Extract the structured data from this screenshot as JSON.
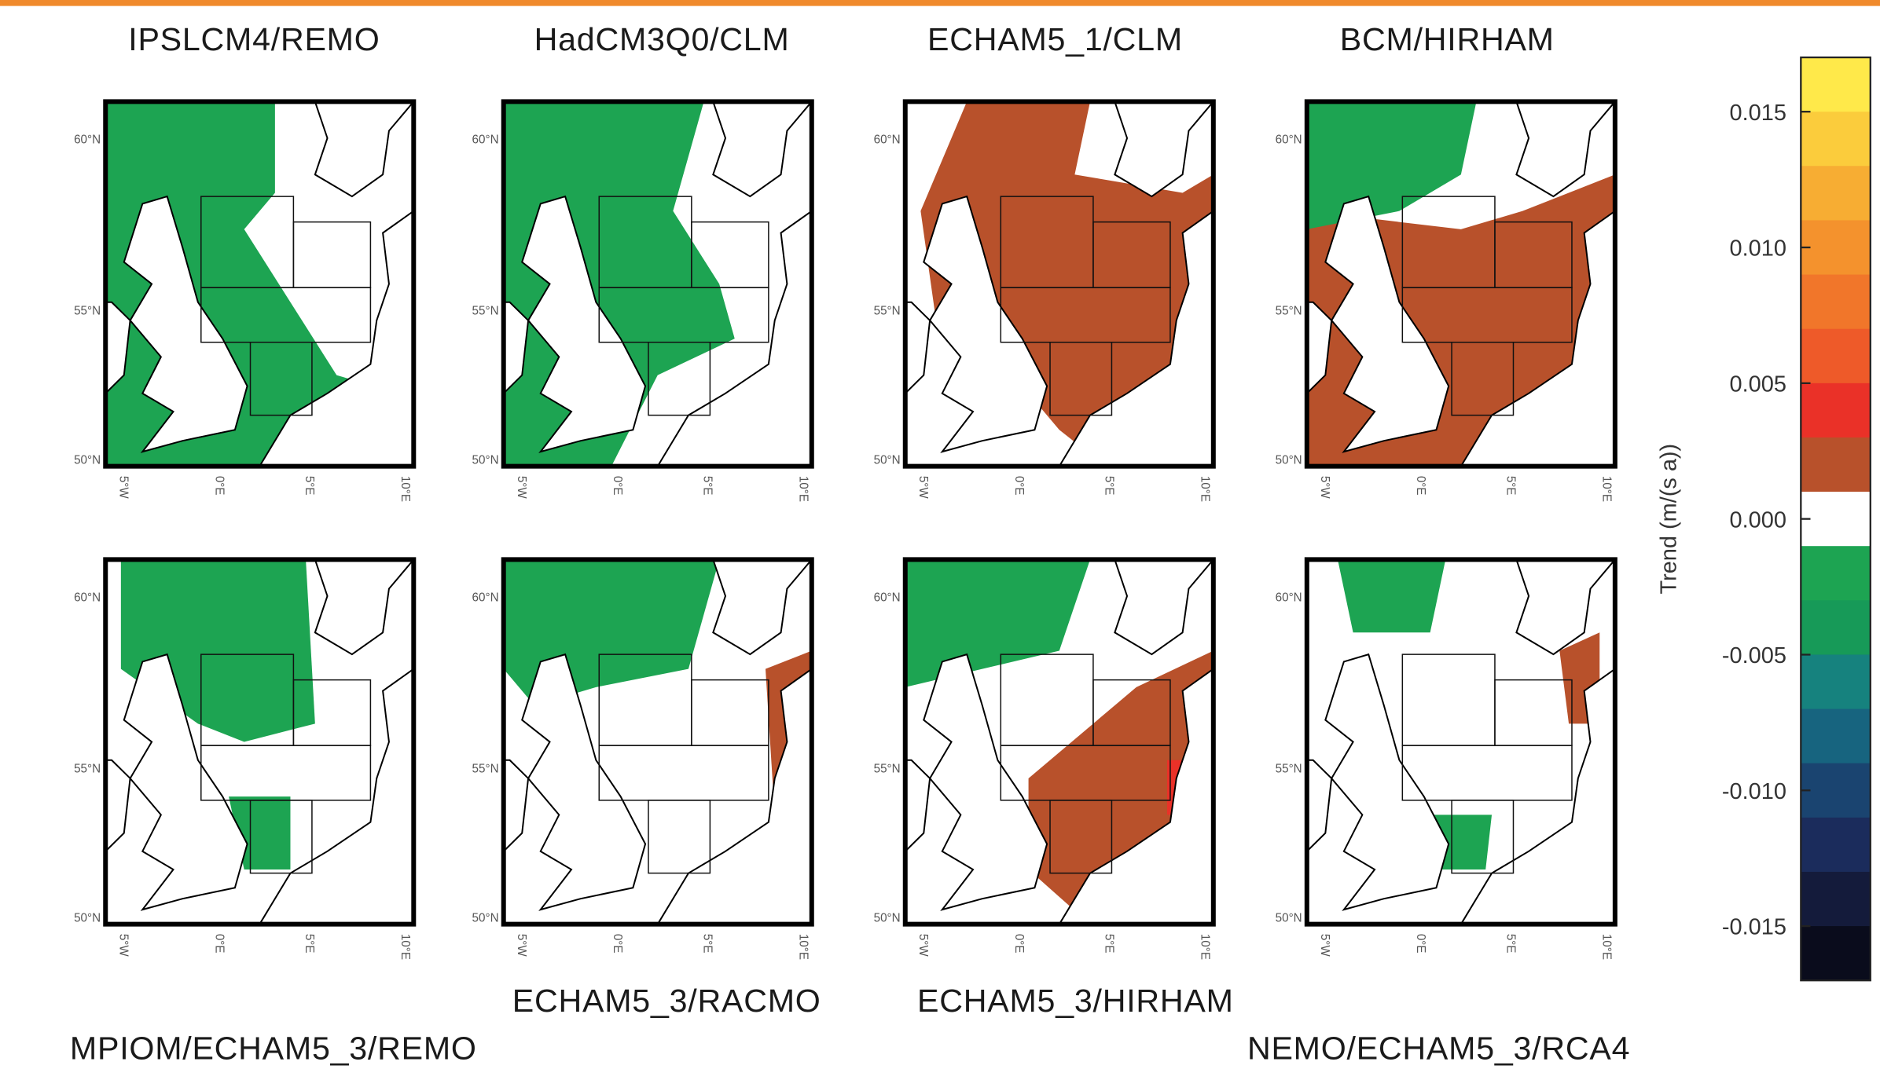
{
  "panels": [
    {
      "title": "IPSLCM4/REMO"
    },
    {
      "title": "HadCM3Q0/CLM"
    },
    {
      "title": "ECHAM5_1/CLM"
    },
    {
      "title": "BCM/HIRHAM"
    },
    {
      "title": "MPIOM/ECHAM5_3/REMO"
    },
    {
      "title": "ECHAM5_3/RACMO"
    },
    {
      "title": "ECHAM5_3/HIRHAM"
    },
    {
      "title": "NEMO/ECHAM5_3/RCA4"
    }
  ],
  "lat_labels": [
    "60°N",
    "55°N",
    "50°N"
  ],
  "lon_labels": [
    "5°W",
    "0°E",
    "5°E",
    "10°E"
  ],
  "colorbar": {
    "label": "Trend (m/(s a))",
    "lim": [
      -0.017,
      0.017
    ],
    "ticks": [
      0.015,
      {
        "value": 0.01,
        "label": "0.010"
      },
      0.005,
      {
        "value": 0,
        "label": "0.000"
      },
      -0.005,
      {
        "value": -0.01,
        "label": "-0.010"
      },
      -0.015
    ],
    "colors": [
      "#ffe94a",
      "#fbcc3c",
      "#f7ad33",
      "#f4922d",
      "#f1762a",
      "#ee5a29",
      "#ea3128",
      "#b8512b",
      "#ffffff",
      "#1da452",
      "#179a58",
      "#16827e",
      "#17647f",
      "#1a4470",
      "#1b2c5c",
      "#141b3b",
      "#0a0c1c"
    ]
  }
}
